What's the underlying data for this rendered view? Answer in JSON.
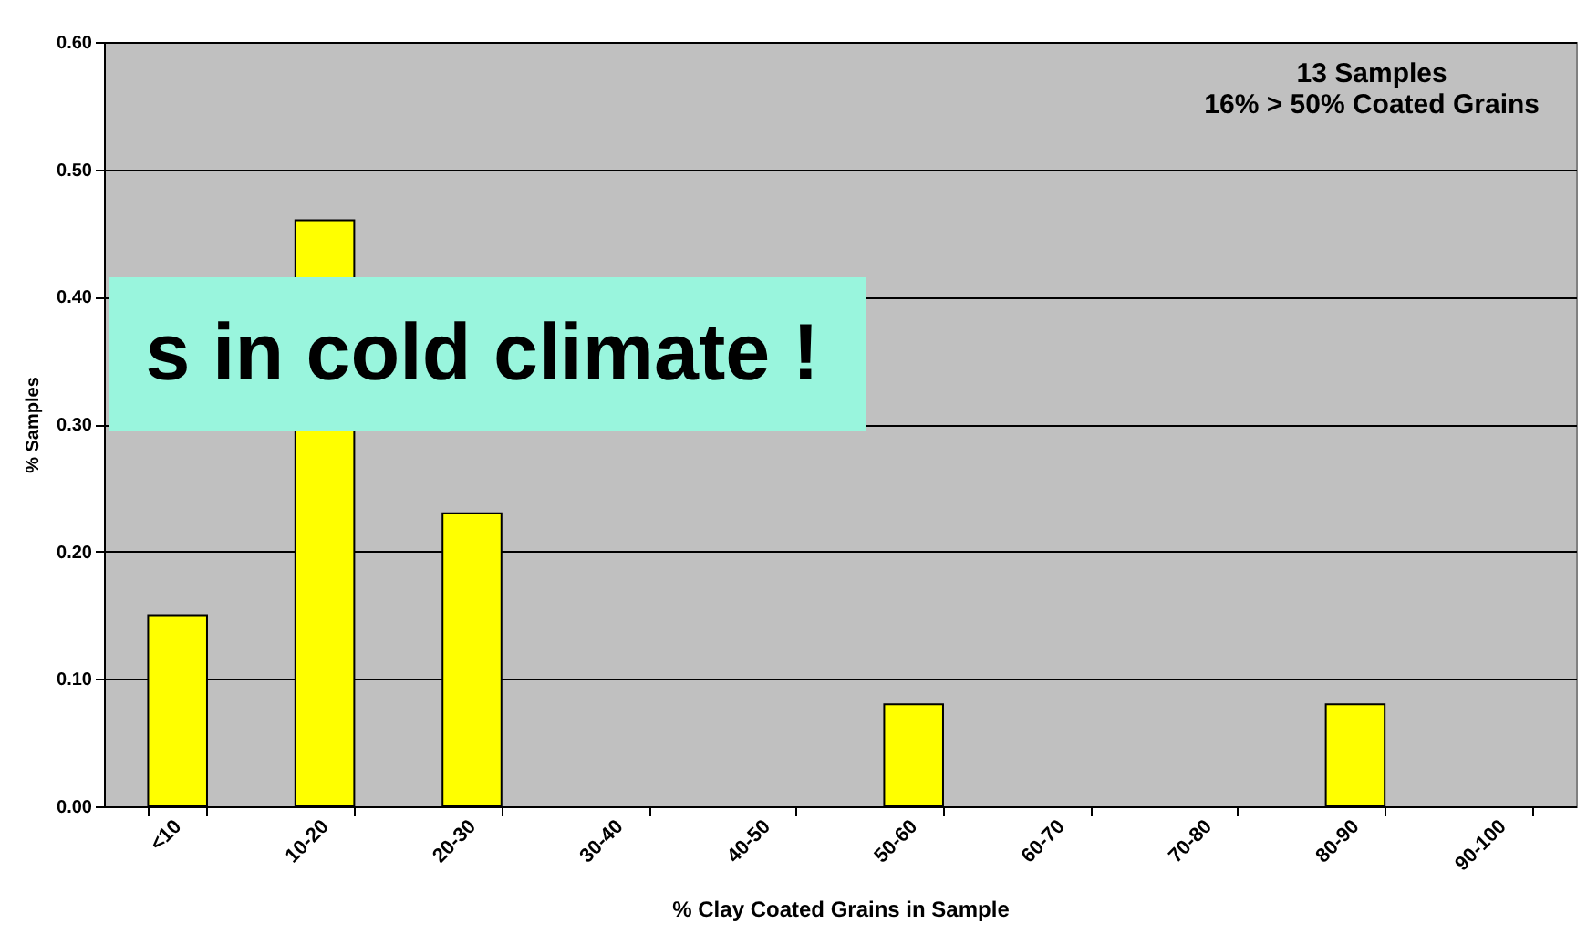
{
  "chart_data": {
    "type": "bar",
    "xlabel": "% Clay Coated Grains in Sample",
    "ylabel": "% Samples",
    "categories": [
      "<10",
      "10-20",
      "20-30",
      "30-40",
      "40-50",
      "50-60",
      "60-70",
      "70-80",
      "80-90",
      "90-100"
    ],
    "values": [
      0.15,
      0.46,
      0.23,
      0,
      0,
      0.08,
      0,
      0,
      0.08,
      0
    ],
    "color": "#ffff00",
    "ylim": [
      0,
      0.6
    ],
    "yticks": [
      {
        "value": 0,
        "label": "0.00"
      },
      {
        "value": 0.1,
        "label": "0.10"
      },
      {
        "value": 0.2,
        "label": "0.20"
      },
      {
        "value": 0.3,
        "label": "0.30"
      },
      {
        "value": 0.4,
        "label": "0.40"
      },
      {
        "value": 0.5,
        "label": "0.50"
      },
      {
        "value": 0.6,
        "label": "0.60"
      }
    ],
    "grid": "y",
    "annotations": [
      "13 Samples",
      "16% > 50% Coated Grains",
      "s in cold climate !"
    ]
  }
}
